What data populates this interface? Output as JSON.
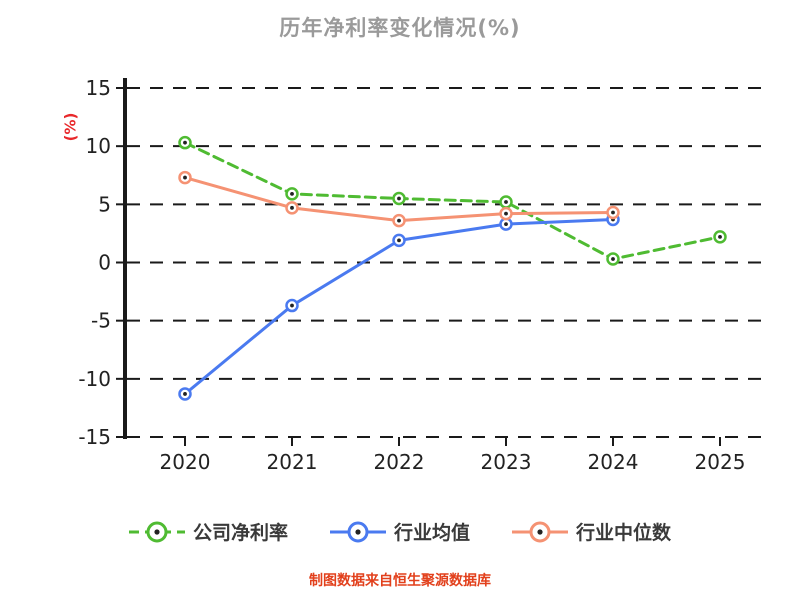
{
  "title": "历年净利率变化情况(%)",
  "ylabel": "(%)",
  "footer": "制图数据来自恒生聚源数据库",
  "colors": {
    "title_text": "#9a9a9a",
    "axis_text": "#222222",
    "unit_text": "#e8282b",
    "footer_text": "#e2401c",
    "grid": "#1a1a1a",
    "spine": "#1a1a1a",
    "marker_center": "#222222"
  },
  "chart_data": {
    "type": "line",
    "x": [
      "2020",
      "2021",
      "2022",
      "2023",
      "2024",
      "2025"
    ],
    "ylim": [
      -15,
      15
    ],
    "yticks": [
      15,
      10,
      5,
      0,
      -5,
      -10,
      -15
    ],
    "grid": true,
    "legend_position": "bottom",
    "series": [
      {
        "name": "公司净利率",
        "color": "#4fbb32",
        "dash": "10 6",
        "values": [
          10.3,
          5.9,
          5.5,
          5.2,
          0.3,
          2.2
        ]
      },
      {
        "name": "行业均值",
        "color": "#4a7af0",
        "dash": null,
        "values": [
          -11.3,
          -3.7,
          1.9,
          3.3,
          3.7,
          null
        ]
      },
      {
        "name": "行业中位数",
        "color": "#f59273",
        "dash": null,
        "values": [
          7.3,
          4.7,
          3.6,
          4.2,
          4.3,
          null
        ]
      }
    ]
  }
}
